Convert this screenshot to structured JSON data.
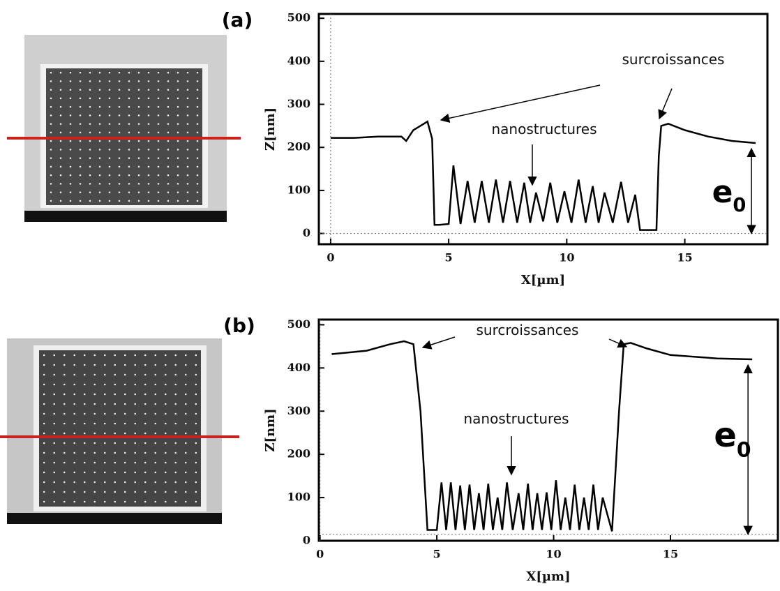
{
  "chart_data": [
    {
      "type": "line",
      "panel_label": "(a)",
      "xlabel": "X[µm]",
      "ylabel": "Z[nm]",
      "xlim": [
        -0.5,
        18.5
      ],
      "ylim": [
        -25,
        510
      ],
      "xticks": [
        0,
        5,
        10,
        15
      ],
      "yticks": [
        0,
        100,
        200,
        300,
        400,
        500
      ],
      "baseline": 0,
      "color": "#000000",
      "x": [
        0,
        1,
        2,
        3,
        3.2,
        3.5,
        3.8,
        4.1,
        4.3,
        4.4,
        4.6,
        5.0,
        5.2,
        5.5,
        5.8,
        6.1,
        6.4,
        6.7,
        7.0,
        7.3,
        7.6,
        7.9,
        8.2,
        8.45,
        8.7,
        9.0,
        9.3,
        9.6,
        9.9,
        10.2,
        10.5,
        10.8,
        11.1,
        11.35,
        11.6,
        11.95,
        12.3,
        12.6,
        12.9,
        13.1,
        13.3,
        13.8,
        13.9,
        14.0,
        14.3,
        15,
        16,
        17,
        18
      ],
      "values": [
        222,
        222,
        225,
        225,
        215,
        240,
        250,
        260,
        220,
        20,
        20,
        22,
        158,
        22,
        122,
        25,
        122,
        25,
        125,
        25,
        122,
        25,
        118,
        25,
        95,
        28,
        118,
        25,
        98,
        25,
        125,
        25,
        110,
        25,
        95,
        25,
        120,
        25,
        90,
        8,
        8,
        8,
        180,
        250,
        255,
        240,
        225,
        215,
        210
      ],
      "annotations": [
        {
          "text": "surcroissances"
        },
        {
          "text": "nanostructures"
        },
        {
          "text": "e",
          "subscript": "0"
        }
      ]
    },
    {
      "type": "line",
      "panel_label": "(b)",
      "xlabel": "X[µm]",
      "ylabel": "Z[nm]",
      "xlim": [
        -0.05,
        19.6
      ],
      "ylim": [
        0,
        512
      ],
      "xticks": [
        0,
        5,
        10,
        15
      ],
      "yticks": [
        0,
        100,
        200,
        300,
        400,
        500
      ],
      "baseline": 15,
      "color": "#000000",
      "x": [
        0.5,
        2,
        3,
        3.6,
        4.0,
        4.3,
        4.6,
        5.0,
        5.2,
        5.4,
        5.6,
        5.8,
        6.0,
        6.2,
        6.4,
        6.6,
        6.8,
        7.0,
        7.2,
        7.4,
        7.6,
        7.8,
        8.0,
        8.25,
        8.5,
        8.7,
        8.9,
        9.1,
        9.3,
        9.5,
        9.7,
        9.9,
        10.1,
        10.3,
        10.5,
        10.7,
        10.9,
        11.1,
        11.3,
        11.5,
        11.7,
        11.9,
        12.1,
        12.5,
        12.8,
        13.0,
        13.3,
        14,
        15,
        17,
        18.5
      ],
      "values": [
        432,
        440,
        455,
        462,
        455,
        300,
        25,
        25,
        135,
        25,
        135,
        25,
        128,
        25,
        130,
        25,
        110,
        25,
        132,
        25,
        100,
        25,
        135,
        25,
        110,
        25,
        132,
        25,
        110,
        25,
        112,
        25,
        140,
        25,
        100,
        25,
        130,
        25,
        100,
        25,
        130,
        25,
        100,
        22,
        300,
        455,
        458,
        445,
        430,
        422,
        420
      ],
      "annotations": [
        {
          "text": "surcroissances"
        },
        {
          "text": "nanostructures"
        },
        {
          "text": "e",
          "subscript": "0"
        }
      ]
    }
  ]
}
